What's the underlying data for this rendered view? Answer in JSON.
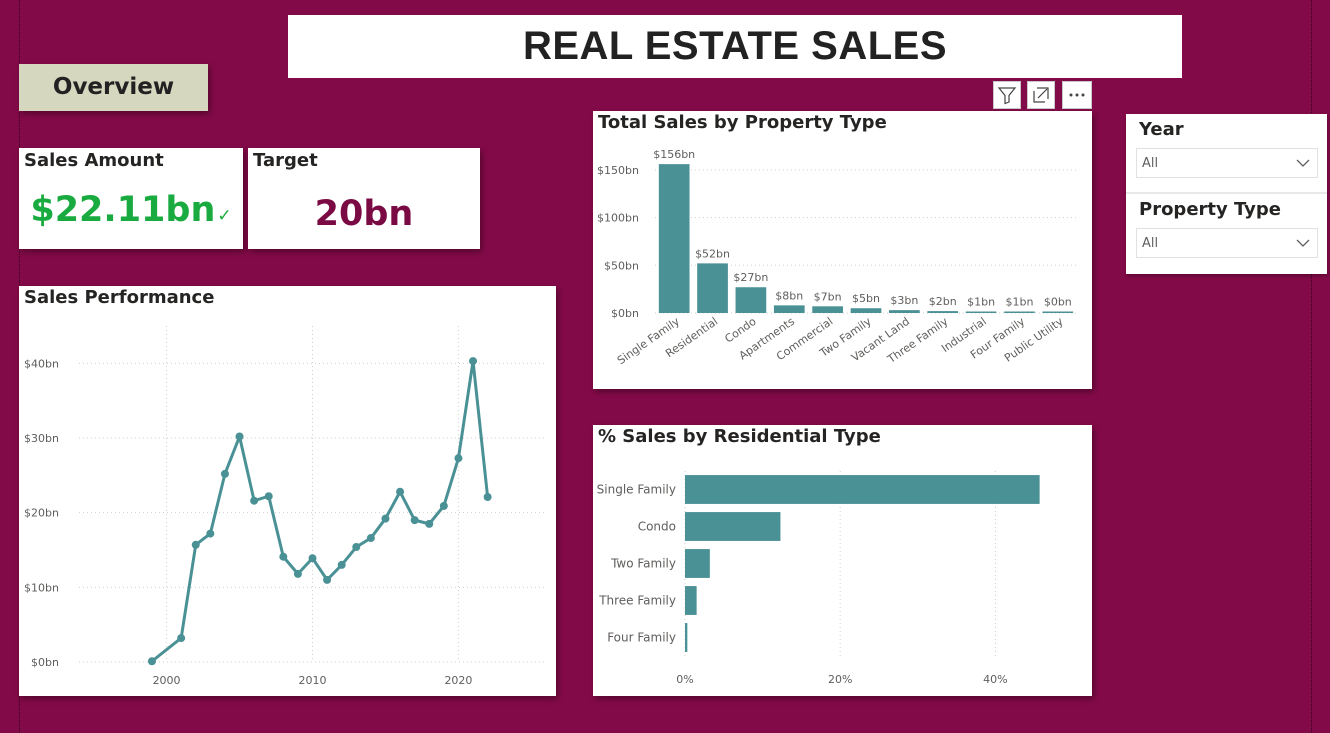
{
  "title": "REAL ESTATE SALES",
  "nav": {
    "overview_label": "Overview"
  },
  "kpis": {
    "sales": {
      "label": "Sales Amount",
      "value": "$22.11bn"
    },
    "target": {
      "label": "Target",
      "value": "20bn"
    }
  },
  "toolbar": {
    "icons": [
      "filter-icon",
      "focus-mode-icon",
      "more-options-icon"
    ]
  },
  "slicers": {
    "year": {
      "label": "Year",
      "value": "All"
    },
    "property_type": {
      "label": "Property Type",
      "value": "All"
    }
  },
  "colors": {
    "background": "#830a48",
    "bar": "#4a9196",
    "kpi_green": "#1aab40",
    "kpi_target": "#7a0a44"
  },
  "chart_data": [
    {
      "id": "sales-performance",
      "type": "line",
      "title": "Sales Performance",
      "x": [
        1999,
        2001,
        2002,
        2003,
        2004,
        2005,
        2006,
        2007,
        2008,
        2009,
        2010,
        2011,
        2012,
        2013,
        2014,
        2015,
        2016,
        2017,
        2018,
        2019,
        2020,
        2021,
        2022
      ],
      "values": [
        0.1,
        3.2,
        15.7,
        17.2,
        25.2,
        30.2,
        21.6,
        22.2,
        14.1,
        11.8,
        13.9,
        11.0,
        13.0,
        15.4,
        16.6,
        19.2,
        22.8,
        19.0,
        18.5,
        20.9,
        27.3,
        40.3,
        22.1
      ],
      "xlim": [
        1994,
        2026
      ],
      "ylim": [
        0,
        45
      ],
      "x_ticks": [
        2000,
        2010,
        2020
      ],
      "x_tick_labels": [
        "2000",
        "2010",
        "2020"
      ],
      "y_ticks": [
        0,
        10,
        20,
        30,
        40
      ],
      "y_tick_labels": [
        "$0bn",
        "$10bn",
        "$20bn",
        "$30bn",
        "$40bn"
      ],
      "grid": true
    },
    {
      "id": "total-sales-by-property-type",
      "type": "bar",
      "title": "Total Sales by Property Type",
      "categories": [
        "Single Family",
        "Residential",
        "Condo",
        "Apartments",
        "Commercial",
        "Two Family",
        "Vacant Land",
        "Three Family",
        "Industrial",
        "Four Family",
        "Public Utility"
      ],
      "values": [
        156,
        52,
        27,
        8,
        7,
        5,
        3,
        2,
        1,
        1,
        0.3
      ],
      "data_labels": [
        "$156bn",
        "$52bn",
        "$27bn",
        "$8bn",
        "$7bn",
        "$5bn",
        "$3bn",
        "$2bn",
        "$1bn",
        "$1bn",
        "$0bn"
      ],
      "ylim": [
        0,
        175
      ],
      "y_ticks": [
        0,
        50,
        100,
        150
      ],
      "y_tick_labels": [
        "$0bn",
        "$50bn",
        "$100bn",
        "$150bn"
      ],
      "grid": true
    },
    {
      "id": "pct-sales-by-residential-type",
      "type": "bar",
      "orientation": "horizontal",
      "title": "% Sales by Residential Type",
      "categories": [
        "Single Family",
        "Condo",
        "Two Family",
        "Three Family",
        "Four Family"
      ],
      "values": [
        45.7,
        12.3,
        3.2,
        1.5,
        0.3
      ],
      "xlim": [
        0,
        50
      ],
      "x_ticks": [
        0,
        20,
        40
      ],
      "x_tick_labels": [
        "0%",
        "20%",
        "40%"
      ],
      "grid": true
    }
  ]
}
